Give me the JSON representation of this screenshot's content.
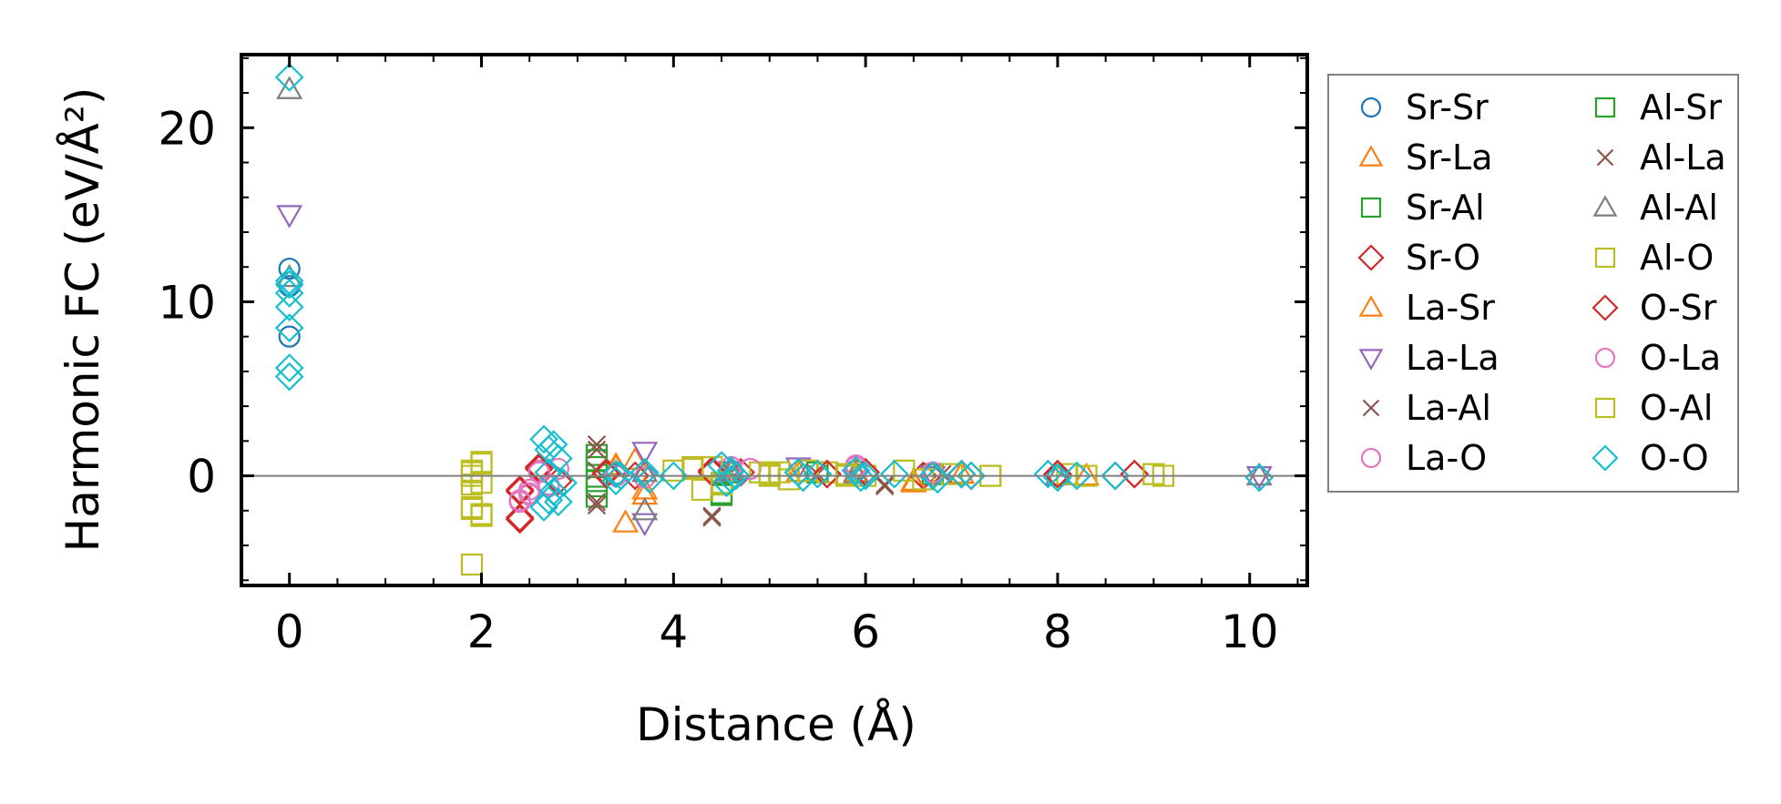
{
  "chart_data": {
    "type": "scatter",
    "title": "",
    "xlabel": "Distance (Å)",
    "ylabel": "Harmonic FC (eV/Å²)",
    "xlim": [
      -0.5,
      10.6
    ],
    "ylim": [
      -6.3,
      24.2
    ],
    "xticks": [
      0,
      2,
      4,
      6,
      8,
      10
    ],
    "yticks": [
      0,
      10,
      20
    ],
    "grid": false,
    "legend_position": "right outside",
    "reference_line_y": 0,
    "series": [
      {
        "name": "Sr-Sr",
        "marker": "circle",
        "color": "#1f77b4",
        "x": [
          0,
          0,
          0,
          3.4,
          4.6,
          5.9,
          6.7,
          8.0
        ],
        "y": [
          11.9,
          8.0,
          10.9,
          0.1,
          0.2,
          0.3,
          0.1,
          0.0
        ]
      },
      {
        "name": "Sr-La",
        "marker": "triangle-up",
        "color": "#ff7f0e",
        "x": [
          3.4,
          3.5,
          3.6,
          3.7,
          4.6,
          5.9,
          6.5,
          7.0
        ],
        "y": [
          0.6,
          -2.7,
          0.9,
          -1.1,
          0.3,
          0.2,
          -0.4,
          0.1
        ]
      },
      {
        "name": "Sr-Al",
        "marker": "square",
        "color": "#2ca02c",
        "x": [
          3.2,
          3.2,
          3.2,
          3.2,
          4.5,
          4.6,
          5.5,
          6.7
        ],
        "y": [
          1.2,
          0.5,
          -0.3,
          -1.2,
          -1.1,
          0.2,
          0.2,
          0.1
        ]
      },
      {
        "name": "Sr-O",
        "marker": "diamond",
        "color": "#d62728",
        "x": [
          2.4,
          2.4,
          2.6,
          2.8,
          3.3,
          3.6,
          4.4,
          4.7,
          5.6,
          5.9,
          6.0,
          6.6,
          7.0,
          7.1,
          8.0,
          8.6,
          8.8
        ],
        "y": [
          -2.5,
          -0.8,
          0.5,
          -0.3,
          0.2,
          0.0,
          0.3,
          0.2,
          0.1,
          0.3,
          0.2,
          0.0,
          0.1,
          0.0,
          0.1,
          0.0,
          0.1
        ]
      },
      {
        "name": "La-Sr",
        "marker": "triangle-up",
        "color": "#ff7f0e",
        "x": [
          3.4,
          3.7,
          4.6,
          5.3,
          5.9,
          6.5,
          7.0,
          8.3
        ],
        "y": [
          0.5,
          -0.8,
          0.3,
          0.2,
          0.2,
          -0.3,
          0.1,
          0.0
        ]
      },
      {
        "name": "La-La",
        "marker": "triangle-down",
        "color": "#9467bd",
        "x": [
          0,
          3.7,
          3.7,
          4.6,
          5.3,
          5.9,
          6.7,
          10.1
        ],
        "y": [
          15.0,
          -2.7,
          1.4,
          0.3,
          0.5,
          0.1,
          0.0,
          0.0
        ]
      },
      {
        "name": "La-Al",
        "marker": "x",
        "color": "#8c564b",
        "x": [
          3.2,
          3.2,
          3.2,
          4.4,
          4.6,
          5.5,
          6.2,
          6.8
        ],
        "y": [
          1.8,
          -1.7,
          0.3,
          -2.4,
          0.2,
          0.1,
          -0.6,
          0.1
        ]
      },
      {
        "name": "La-O",
        "marker": "circle",
        "color": "#e377c2",
        "x": [
          2.4,
          2.5,
          2.5,
          2.6,
          2.7,
          2.8,
          3.4,
          3.7,
          4.6,
          4.8,
          5.9,
          6.7
        ],
        "y": [
          -1.5,
          -0.8,
          -1.1,
          0.3,
          -0.5,
          0.4,
          0.0,
          -0.1,
          0.5,
          0.4,
          0.6,
          0.2
        ]
      },
      {
        "name": "Al-Sr",
        "marker": "square",
        "color": "#2ca02c",
        "x": [
          3.2,
          3.2,
          4.5,
          5.5
        ],
        "y": [
          0.9,
          -0.6,
          -1.0,
          0.2
        ]
      },
      {
        "name": "Al-La",
        "marker": "x",
        "color": "#8c564b",
        "x": [
          3.2,
          3.2,
          4.4,
          6.2
        ],
        "y": [
          1.5,
          -1.5,
          -2.3,
          -0.5
        ]
      },
      {
        "name": "Al-Al",
        "marker": "triangle-up",
        "color": "#7f7f7f",
        "x": [
          0,
          0,
          3.7,
          3.7,
          4.6,
          5.9,
          8.0,
          10.1
        ],
        "y": [
          22.2,
          11.4,
          -2.0,
          0.2,
          0.2,
          0.1,
          0.0,
          0.0
        ]
      },
      {
        "name": "Al-O",
        "marker": "square",
        "color": "#bcbd22",
        "x": [
          1.9,
          1.9,
          1.9,
          1.9,
          1.9,
          2.0,
          2.0,
          2.0,
          2.0,
          4.0,
          4.2,
          4.3,
          4.4,
          4.5,
          4.9,
          5.0,
          5.1,
          5.2,
          5.4,
          5.6,
          5.8,
          6.0,
          6.4,
          6.6,
          6.9,
          7.3,
          8.1,
          8.3,
          9.0,
          9.1
        ],
        "y": [
          0.3,
          -0.5,
          -1.9,
          -5.1,
          0.0,
          -0.4,
          0.8,
          -2.3,
          -2.3,
          0.3,
          0.5,
          -0.8,
          0.5,
          -0.5,
          0.2,
          0.0,
          0.2,
          -0.2,
          0.3,
          0.2,
          0.0,
          0.0,
          0.3,
          -0.2,
          0.1,
          0.0,
          0.1,
          0.0,
          0.1,
          0.0
        ]
      },
      {
        "name": "O-Sr",
        "marker": "diamond",
        "color": "#d62728",
        "x": [
          2.4,
          2.4,
          2.6,
          3.3,
          4.4,
          5.6,
          6.0,
          7.0,
          8.0,
          8.8
        ],
        "y": [
          -2.4,
          -0.9,
          0.4,
          0.1,
          0.2,
          0.1,
          0.2,
          0.1,
          0.1,
          0.1
        ]
      },
      {
        "name": "O-La",
        "marker": "circle",
        "color": "#e377c2",
        "x": [
          2.4,
          2.5,
          2.6,
          2.7,
          4.8,
          5.9
        ],
        "y": [
          -1.4,
          -1.0,
          0.2,
          -0.6,
          0.4,
          0.5
        ]
      },
      {
        "name": "O-Al",
        "marker": "square",
        "color": "#bcbd22",
        "x": [
          1.9,
          1.9,
          2.0,
          2.0,
          4.2,
          4.5,
          5.0,
          5.8,
          7.3,
          9.0
        ],
        "y": [
          0.2,
          -1.8,
          0.7,
          -2.2,
          0.4,
          -0.4,
          0.1,
          0.1,
          0.0,
          0.1
        ]
      },
      {
        "name": "O-O",
        "marker": "diamond",
        "color": "#17becf",
        "x": [
          0,
          0,
          0,
          0,
          0,
          0,
          0,
          0,
          2.65,
          2.65,
          2.7,
          2.7,
          2.7,
          2.75,
          2.75,
          2.8,
          2.8,
          2.85,
          3.4,
          3.4,
          3.45,
          3.7,
          3.75,
          4.0,
          4.5,
          4.55,
          4.6,
          4.6,
          4.65,
          5.3,
          5.35,
          5.5,
          5.9,
          5.95,
          6.0,
          6.3,
          6.7,
          6.75,
          7.0,
          7.1,
          7.9,
          8.0,
          8.2,
          8.6,
          10.1
        ],
        "y": [
          22.9,
          11.2,
          10.5,
          9.7,
          8.5,
          6.2,
          5.7,
          11.0,
          2.1,
          -1.8,
          1.5,
          0.2,
          -1.4,
          1.8,
          -0.9,
          1.0,
          -1.5,
          -0.4,
          0.1,
          -0.3,
          0.0,
          0.2,
          -0.2,
          0.0,
          0.6,
          -0.4,
          0.3,
          -0.2,
          0.0,
          0.2,
          -0.1,
          0.1,
          0.3,
          -0.1,
          0.0,
          0.1,
          0.0,
          -0.2,
          0.1,
          0.0,
          0.1,
          -0.1,
          0.0,
          0.0,
          -0.1
        ]
      }
    ]
  }
}
